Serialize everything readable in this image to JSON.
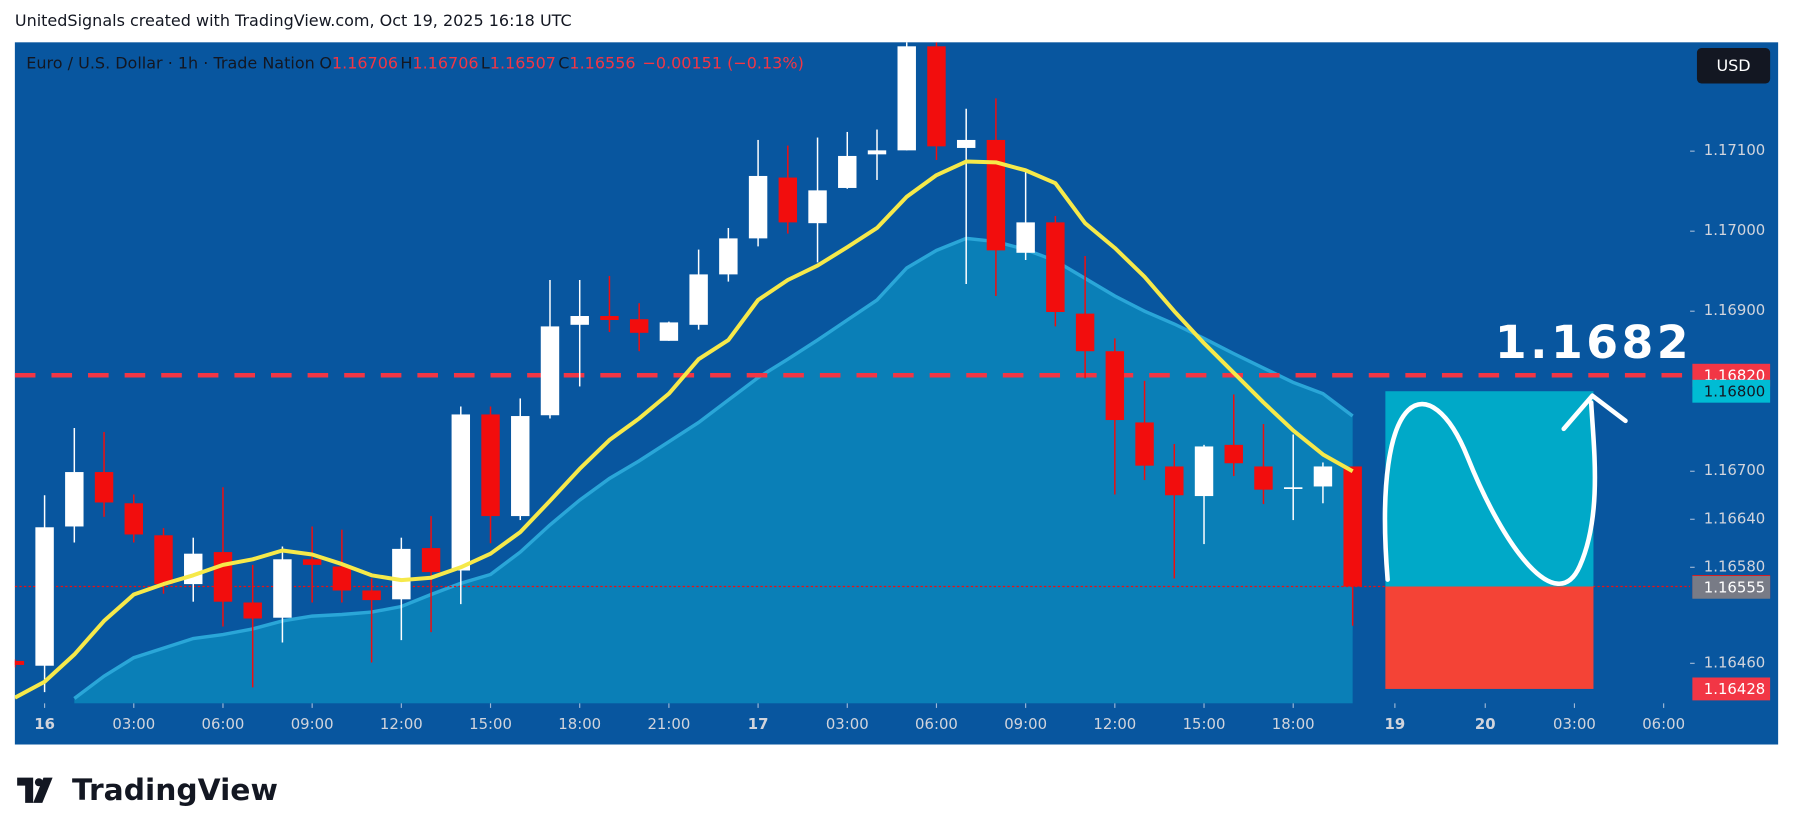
{
  "header": "UnitedSignals created with TradingView.com, Oct 19, 2025 16:18 UTC",
  "brand": "TradingView",
  "chart_data": {
    "type": "candlestick",
    "symbol": "Euro / U.S. Dollar · 1h · Trade Nation",
    "ohlc_labels": [
      "O",
      "H",
      "L",
      "C"
    ],
    "change": "−0.00151 (−0.13%)",
    "currency": "USD",
    "annotation": "1.1682",
    "x": [
      -1,
      0,
      1,
      2,
      3,
      4,
      5,
      6,
      7,
      8,
      9,
      10,
      11,
      12,
      13,
      14,
      15,
      16,
      17,
      18,
      19,
      20,
      21,
      22,
      23,
      24,
      25,
      26,
      27,
      28,
      29,
      30,
      31,
      32,
      33,
      34,
      35,
      36,
      37,
      38,
      39,
      40,
      41,
      42,
      43,
      44
    ],
    "open": [
      1.16463,
      1.16457,
      1.16631,
      1.16699,
      1.1666,
      1.1662,
      1.16559,
      1.16599,
      1.16536,
      1.16517,
      1.1659,
      1.16581,
      1.16551,
      1.1654,
      1.16604,
      1.16576,
      1.16771,
      1.16644,
      1.1677,
      1.16883,
      1.16894,
      1.1689,
      1.16863,
      1.16883,
      1.16946,
      1.16991,
      1.17067,
      1.1701,
      1.17054,
      1.17096,
      1.17101,
      1.17231,
      1.17104,
      1.17114,
      1.16973,
      1.17011,
      1.16897,
      1.1685,
      1.16761,
      1.16706,
      1.16669,
      1.16733,
      1.16706,
      1.16678,
      1.16681,
      1.16706
    ],
    "high": [
      1.16465,
      1.1667,
      1.16754,
      1.16749,
      1.16671,
      1.16629,
      1.16617,
      1.1668,
      1.16583,
      1.16606,
      1.16631,
      1.16627,
      1.16566,
      1.16617,
      1.16644,
      1.16781,
      1.16781,
      1.16791,
      1.16939,
      1.16939,
      1.16944,
      1.1691,
      1.16887,
      1.16977,
      1.17004,
      1.17114,
      1.17107,
      1.17117,
      1.17124,
      1.17127,
      1.17239,
      1.17236,
      1.17153,
      1.17166,
      1.17077,
      1.17019,
      1.16969,
      1.16866,
      1.16813,
      1.16734,
      1.16733,
      1.16796,
      1.16759,
      1.16746,
      1.16711,
      1.16706
    ],
    "low": [
      1.16455,
      1.16424,
      1.16611,
      1.16643,
      1.16611,
      1.16547,
      1.16537,
      1.16506,
      1.1643,
      1.16486,
      1.16536,
      1.16536,
      1.16461,
      1.16489,
      1.16499,
      1.16534,
      1.1661,
      1.16639,
      1.16766,
      1.16806,
      1.16874,
      1.1685,
      1.16863,
      1.16877,
      1.16937,
      1.16981,
      1.16997,
      1.16961,
      1.17053,
      1.17064,
      1.17101,
      1.17089,
      1.16934,
      1.16919,
      1.16964,
      1.16881,
      1.16816,
      1.16671,
      1.16689,
      1.16566,
      1.16609,
      1.16694,
      1.16659,
      1.16639,
      1.1666,
      1.16507
    ],
    "close": [
      1.16458,
      1.1663,
      1.16699,
      1.16661,
      1.16621,
      1.16559,
      1.16597,
      1.16537,
      1.16516,
      1.1659,
      1.16583,
      1.16551,
      1.16539,
      1.16603,
      1.16574,
      1.16771,
      1.16644,
      1.16769,
      1.16881,
      1.16894,
      1.16889,
      1.16873,
      1.16886,
      1.16946,
      1.16991,
      1.17069,
      1.17011,
      1.17051,
      1.17094,
      1.17101,
      1.17231,
      1.17106,
      1.17114,
      1.16976,
      1.17011,
      1.16899,
      1.1685,
      1.16764,
      1.16707,
      1.1667,
      1.16731,
      1.1671,
      1.16677,
      1.1668,
      1.16706,
      1.16556
    ],
    "up_color": "#ffffff",
    "down_color": "#f20d0d",
    "ma_fast": {
      "color": "#f6e94a",
      "values": [
        1.16417,
        1.16437,
        1.16471,
        1.16513,
        1.16546,
        1.16559,
        1.1657,
        1.16583,
        1.1659,
        1.16601,
        1.16596,
        1.16584,
        1.1657,
        1.16564,
        1.16567,
        1.1658,
        1.16597,
        1.16624,
        1.16663,
        1.16703,
        1.16739,
        1.16766,
        1.16797,
        1.1684,
        1.16864,
        1.16914,
        1.16939,
        1.16957,
        1.1698,
        1.17004,
        1.17043,
        1.1707,
        1.17087,
        1.17086,
        1.17076,
        1.1706,
        1.1701,
        1.16979,
        1.16943,
        1.169,
        1.1686,
        1.16823,
        1.16786,
        1.16751,
        1.16721,
        1.167
      ]
    },
    "ma_slow": {
      "color": "#0b86bb",
      "values": [
        null,
        null,
        1.16416,
        1.16444,
        1.16467,
        1.16479,
        1.16491,
        1.16496,
        1.16503,
        1.16513,
        1.16519,
        1.16521,
        1.16524,
        1.16531,
        1.16546,
        1.1656,
        1.16571,
        1.16599,
        1.16633,
        1.16664,
        1.16691,
        1.16713,
        1.16737,
        1.16761,
        1.16789,
        1.16817,
        1.1684,
        1.16864,
        1.16889,
        1.16914,
        1.16954,
        1.16976,
        1.16991,
        1.16987,
        1.16977,
        1.16963,
        1.16941,
        1.16919,
        1.169,
        1.16884,
        1.16866,
        1.16847,
        1.16829,
        1.16811,
        1.16797,
        1.16769
      ]
    },
    "xlim": [
      -1,
      55.35
    ],
    "ylim": [
      1.1641,
      1.17236
    ],
    "xticks": [
      {
        "value": 0,
        "label": "16"
      },
      {
        "value": 3,
        "label": "03:00"
      },
      {
        "value": 6,
        "label": "06:00"
      },
      {
        "value": 9,
        "label": "09:00"
      },
      {
        "value": 12,
        "label": "12:00"
      },
      {
        "value": 15,
        "label": "15:00"
      },
      {
        "value": 18,
        "label": "18:00"
      },
      {
        "value": 21,
        "label": "21:00"
      },
      {
        "value": 24,
        "label": "17"
      },
      {
        "value": 27,
        "label": "03:00"
      },
      {
        "value": 30,
        "label": "06:00"
      },
      {
        "value": 33,
        "label": "09:00"
      },
      {
        "value": 36,
        "label": "12:00"
      },
      {
        "value": 39,
        "label": "15:00"
      },
      {
        "value": 42,
        "label": "18:00"
      },
      {
        "value": 45.42,
        "label": "19"
      },
      {
        "value": 48.46,
        "label": "20"
      },
      {
        "value": 51.46,
        "label": "03:00"
      },
      {
        "value": 54.46,
        "label": "06:00"
      }
    ],
    "yticks": [
      {
        "value": 1.1646,
        "label": "1.16460"
      },
      {
        "value": 1.1658,
        "label": "1.16580"
      },
      {
        "value": 1.1664,
        "label": "1.16640"
      },
      {
        "value": 1.167,
        "label": "1.16700"
      },
      {
        "value": 1.169,
        "label": "1.16900"
      },
      {
        "value": 1.17,
        "label": "1.17000"
      },
      {
        "value": 1.171,
        "label": "1.17100"
      }
    ],
    "price_markers": [
      {
        "value": 1.1682,
        "label": "1.16820",
        "color": "#f23645"
      },
      {
        "value": 1.168,
        "label": "1.16800",
        "color": "#00bcd4"
      },
      {
        "value": 1.16556,
        "label": "1.16556",
        "color": "#f20d0d"
      },
      {
        "value": 1.16555,
        "label": "1.16555",
        "color": "#787b86"
      },
      {
        "value": 1.16428,
        "label": "1.16428",
        "color": "#f23645"
      }
    ],
    "projection_x": [
      45.1,
      52.1
    ],
    "target_color": "#00a9c8",
    "stop_color": "#f44336",
    "background": "#08569f"
  }
}
